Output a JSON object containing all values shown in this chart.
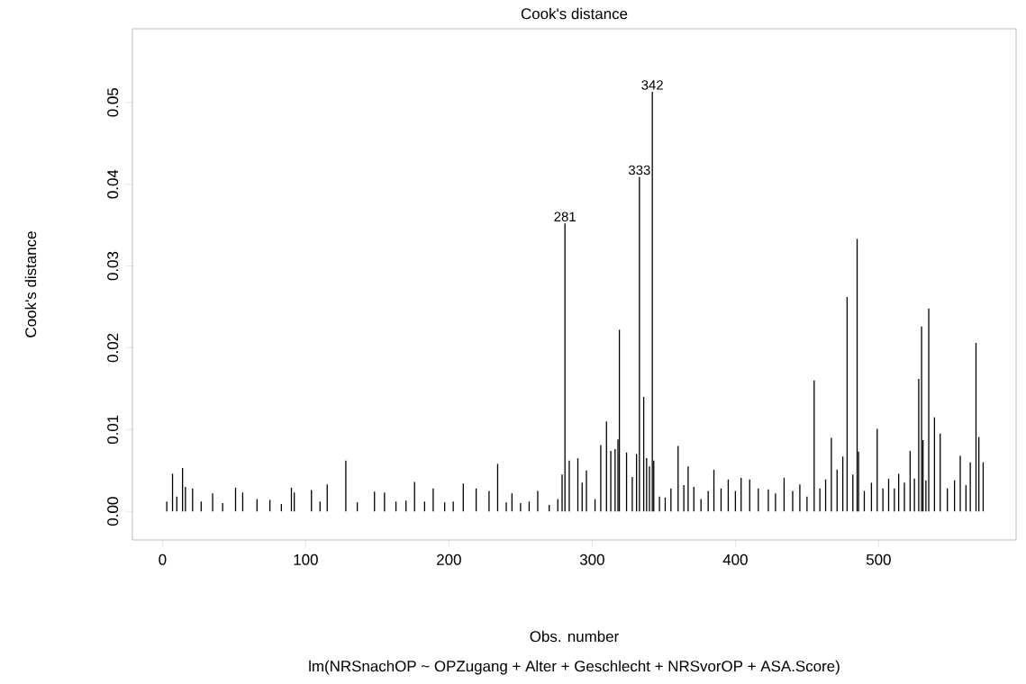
{
  "chart_data": {
    "type": "bar",
    "title": "Cook's distance",
    "xlabel": "Obs. number",
    "ylabel": "Cook's distance",
    "color": "#000000",
    "xlim": [
      -21,
      596
    ],
    "ylim": [
      -0.0035,
      0.059
    ],
    "xticks": [
      0,
      100,
      200,
      300,
      400,
      500
    ],
    "yticks": [
      {
        "value": 0,
        "label": "0.00"
      },
      {
        "value": 0.01,
        "label": "0.01"
      },
      {
        "value": 0.02,
        "label": "0.02"
      },
      {
        "value": 0.03,
        "label": "0.03"
      },
      {
        "value": 0.04,
        "label": "0.04"
      },
      {
        "value": 0.05,
        "label": "0.05"
      }
    ],
    "x": [
      3,
      7,
      10,
      14,
      16,
      21,
      27,
      35,
      42,
      51,
      56,
      66,
      75,
      83,
      90,
      92,
      104,
      110,
      115,
      128,
      136,
      148,
      155,
      163,
      170,
      176,
      183,
      189,
      197,
      203,
      210,
      219,
      228,
      234,
      240,
      244,
      250,
      256,
      262,
      270,
      276,
      279,
      281,
      284,
      290,
      293,
      296,
      302,
      306,
      310,
      313,
      316,
      318,
      319,
      324,
      328,
      331,
      333,
      336,
      338,
      340,
      342,
      343,
      347,
      351,
      355,
      360,
      364,
      367,
      371,
      376,
      381,
      385,
      390,
      395,
      400,
      404,
      410,
      416,
      423,
      428,
      434,
      440,
      445,
      450,
      455,
      459,
      463,
      467,
      471,
      475,
      478,
      482,
      485,
      486,
      490,
      495,
      499,
      503,
      507,
      511,
      514,
      518,
      522,
      525,
      528,
      530,
      531,
      533,
      535,
      539,
      543,
      548,
      553,
      557,
      561,
      564,
      568,
      570,
      573
    ],
    "values": [
      0.0012,
      0.0046,
      0.0018,
      0.0053,
      0.003,
      0.0028,
      0.0012,
      0.0022,
      0.001,
      0.0029,
      0.0023,
      0.0015,
      0.0014,
      0.0009,
      0.0029,
      0.0023,
      0.0026,
      0.0012,
      0.0033,
      0.0062,
      0.0011,
      0.0024,
      0.0023,
      0.0012,
      0.0013,
      0.0036,
      0.0012,
      0.0028,
      0.0011,
      0.0012,
      0.0034,
      0.0028,
      0.0025,
      0.0058,
      0.0011,
      0.0022,
      0.001,
      0.0012,
      0.0025,
      0.0008,
      0.0015,
      0.0045,
      0.0352,
      0.0062,
      0.0065,
      0.0035,
      0.005,
      0.0015,
      0.0081,
      0.011,
      0.0074,
      0.0076,
      0.0088,
      0.0222,
      0.0072,
      0.0042,
      0.007,
      0.0409,
      0.014,
      0.0065,
      0.0055,
      0.0513,
      0.0062,
      0.0018,
      0.0017,
      0.0028,
      0.008,
      0.0032,
      0.0055,
      0.003,
      0.0015,
      0.0025,
      0.0051,
      0.0028,
      0.0039,
      0.0025,
      0.0041,
      0.0039,
      0.0028,
      0.0027,
      0.0022,
      0.0041,
      0.0025,
      0.0033,
      0.0018,
      0.016,
      0.0028,
      0.0039,
      0.009,
      0.0051,
      0.0067,
      0.0262,
      0.0045,
      0.0333,
      0.0073,
      0.0025,
      0.0035,
      0.0101,
      0.0028,
      0.004,
      0.0028,
      0.0046,
      0.0035,
      0.0074,
      0.004,
      0.0162,
      0.0226,
      0.0087,
      0.0038,
      0.0248,
      0.0115,
      0.0095,
      0.0028,
      0.0038,
      0.0068,
      0.0032,
      0.006,
      0.0206,
      0.0091,
      0.006
    ],
    "annotations": [
      {
        "text": "281",
        "x": 281,
        "y": 0.0352
      },
      {
        "text": "333",
        "x": 333,
        "y": 0.0409
      },
      {
        "text": "342",
        "x": 342,
        "y": 0.0513
      },
      "lm(NRSnachOP ~ OPZugang + Alter + Geschlecht + NRSvorOP + ASA.Score)"
    ]
  }
}
